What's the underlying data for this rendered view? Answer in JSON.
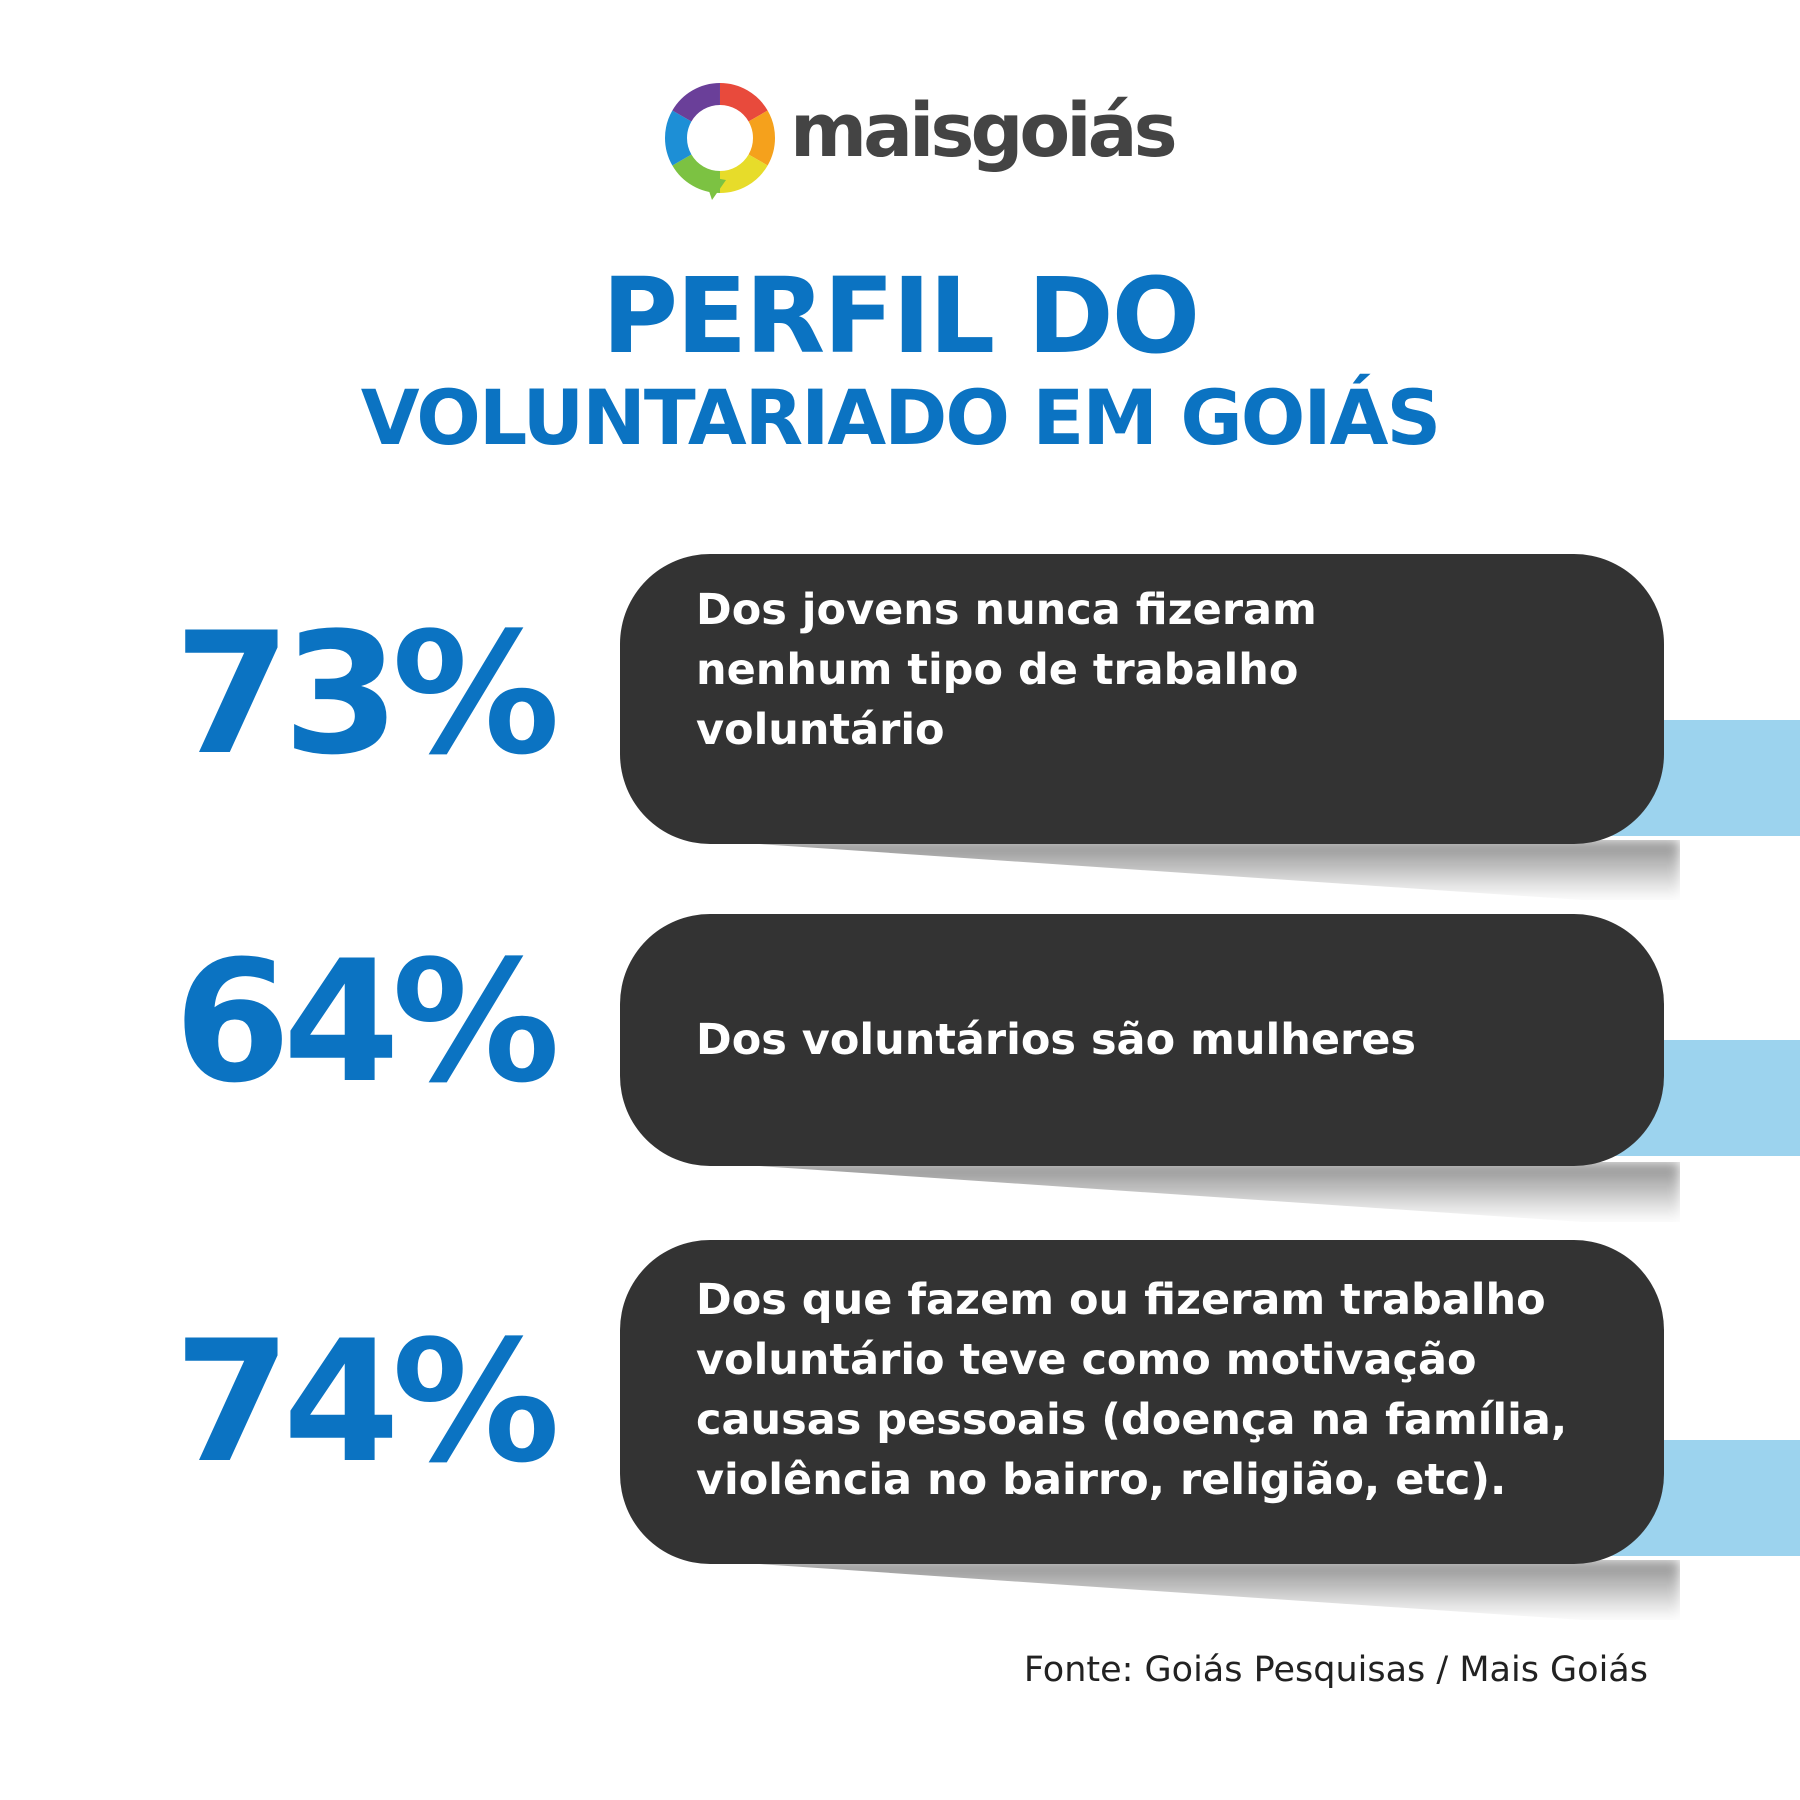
{
  "brand": {
    "name": "maisgoiás"
  },
  "title": {
    "line1": "PERFIL DO",
    "line2": "VOLUNTARIADO EM GOIÁS"
  },
  "stats": [
    {
      "value": "73%",
      "text": "Dos jovens nunca fizeram\nnenhum tipo de trabalho\nvoluntário"
    },
    {
      "value": "64%",
      "text": "Dos voluntários são mulheres"
    },
    {
      "value": "74%",
      "text": "Dos que fazem ou fizeram trabalho\nvoluntário teve como motivação\ncausas pessoais (doença na família,\nviolência no bairro, religião, etc)."
    }
  ],
  "source": "Fonte: Goiás Pesquisas / Mais Goiás",
  "colors": {
    "accent": "#0b73c2",
    "pill": "#333333",
    "stripe": "#9cd3ee"
  }
}
